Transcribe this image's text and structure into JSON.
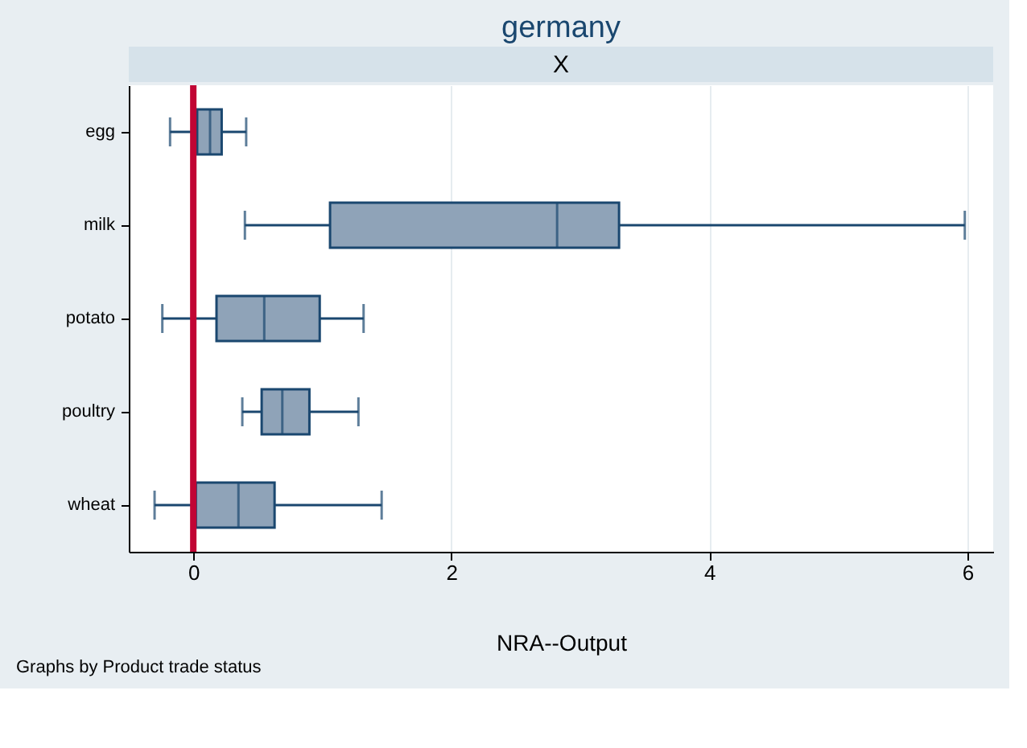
{
  "chart_data": {
    "type": "box",
    "title": "germany",
    "subtitle": "X",
    "xlabel": "NRA--Output",
    "annotations": [
      "Graphs by Product trade status"
    ],
    "orientation": "horizontal",
    "categories": [
      "egg",
      "milk",
      "potato",
      "poultry",
      "wheat"
    ],
    "color": "#8fa3b8",
    "boxes": [
      {
        "low": -0.18,
        "q1": 0.03,
        "median": 0.13,
        "q3": 0.22,
        "high": 0.41
      },
      {
        "low": 0.4,
        "q1": 1.06,
        "median": 2.82,
        "q3": 3.3,
        "high": 5.98
      },
      {
        "low": -0.24,
        "q1": 0.18,
        "median": 0.55,
        "q3": 0.98,
        "high": 1.32
      },
      {
        "low": 0.38,
        "q1": 0.53,
        "median": 0.69,
        "q3": 0.9,
        "high": 1.28
      },
      {
        "low": -0.3,
        "q1": 0.02,
        "median": 0.35,
        "q3": 0.63,
        "high": 1.46
      }
    ],
    "xlim": [
      -0.5,
      6.2
    ],
    "xticks": [
      0,
      2,
      4,
      6
    ],
    "ref_lines": [
      {
        "axis": "x",
        "value": 0,
        "color": "#c10534"
      }
    ],
    "grid": "x"
  }
}
